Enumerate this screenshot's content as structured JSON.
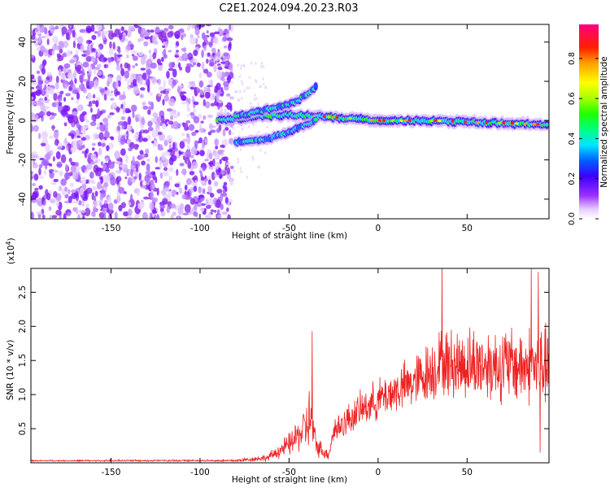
{
  "title": "C2E1.2024.094.20.23.R03",
  "chart_data": [
    {
      "type": "heatmap",
      "xlabel": "Height of straight line (km)",
      "ylabel": "Frequency (Hz)",
      "xlim": [
        -195,
        96
      ],
      "ylim": [
        -50,
        49
      ],
      "xticks": [
        -150,
        -100,
        -50,
        0,
        50
      ],
      "yticks": [
        -40,
        -20,
        0,
        20,
        40
      ],
      "colorbar": {
        "label": "Normalized spectral amplitude",
        "range": [
          0.0,
          0.97
        ],
        "ticks": [
          0.0,
          0.2,
          0.4,
          0.6,
          0.8
        ],
        "tick_labels": [
          "0.0",
          "0.2",
          "0.4",
          "0.6",
          "0.8"
        ]
      },
      "features": {
        "noise_region_x": [
          -195,
          -82
        ],
        "main_trace": [
          {
            "x": -90,
            "freq": 0
          },
          {
            "x": -70,
            "freq": 2
          },
          {
            "x": -50,
            "freq": 3
          },
          {
            "x": -30,
            "freq": 2
          },
          {
            "x": 0,
            "freq": 0
          },
          {
            "x": 30,
            "freq": 0
          },
          {
            "x": 60,
            "freq": -1
          },
          {
            "x": 95,
            "freq": -2
          }
        ],
        "upper_branch": [
          {
            "x": -80,
            "freq": 2
          },
          {
            "x": -60,
            "freq": 6
          },
          {
            "x": -45,
            "freq": 10
          },
          {
            "x": -35,
            "freq": 17
          }
        ],
        "lower_branch": [
          {
            "x": -80,
            "freq": -11
          },
          {
            "x": -60,
            "freq": -9
          },
          {
            "x": -45,
            "freq": -4
          },
          {
            "x": -35,
            "freq": 0
          }
        ],
        "peak_band_x": [
          -35,
          95
        ]
      }
    },
    {
      "type": "line",
      "xlabel": "Height of straight line (km)",
      "ylabel": "SNR (10 * v/v)",
      "y_multiplier": "(x10",
      "y_multiplier_exp": "4",
      "y_multiplier_close": ")",
      "xlim": [
        -195,
        96
      ],
      "ylim": [
        0,
        2.85
      ],
      "xticks": [
        -150,
        -100,
        -50,
        0,
        50
      ],
      "yticks": [
        0.5,
        1.0,
        1.5,
        2.0,
        2.5
      ],
      "ytick_labels": [
        "0.5",
        "1.0",
        "1.5",
        "2.0",
        "2.5"
      ],
      "series_color": "#ee2222",
      "envelope": [
        {
          "x": -195,
          "base": 0.03,
          "amp": 0.01
        },
        {
          "x": -80,
          "base": 0.03,
          "amp": 0.02
        },
        {
          "x": -62,
          "base": 0.07,
          "amp": 0.06
        },
        {
          "x": -50,
          "base": 0.25,
          "amp": 0.2
        },
        {
          "x": -42,
          "base": 0.45,
          "amp": 0.35
        },
        {
          "x": -38,
          "base": 0.6,
          "amp": 0.6
        },
        {
          "x": -35,
          "base": 0.25,
          "amp": 0.2
        },
        {
          "x": -28,
          "base": 0.1,
          "amp": 0.08
        },
        {
          "x": -25,
          "base": 0.45,
          "amp": 0.25
        },
        {
          "x": -10,
          "base": 0.75,
          "amp": 0.3
        },
        {
          "x": 0,
          "base": 0.9,
          "amp": 0.35
        },
        {
          "x": 20,
          "base": 1.15,
          "amp": 0.45
        },
        {
          "x": 35,
          "base": 1.4,
          "amp": 0.6
        },
        {
          "x": 60,
          "base": 1.4,
          "amp": 0.65
        },
        {
          "x": 96,
          "base": 1.35,
          "amp": 0.7
        }
      ],
      "spikes": [
        {
          "x": -37,
          "value": 1.93
        },
        {
          "x": 36,
          "value": 2.85
        },
        {
          "x": 86,
          "value": 2.85
        },
        {
          "x": 90,
          "value": 2.8
        },
        {
          "x": 91,
          "value": 0.15
        }
      ]
    }
  ]
}
